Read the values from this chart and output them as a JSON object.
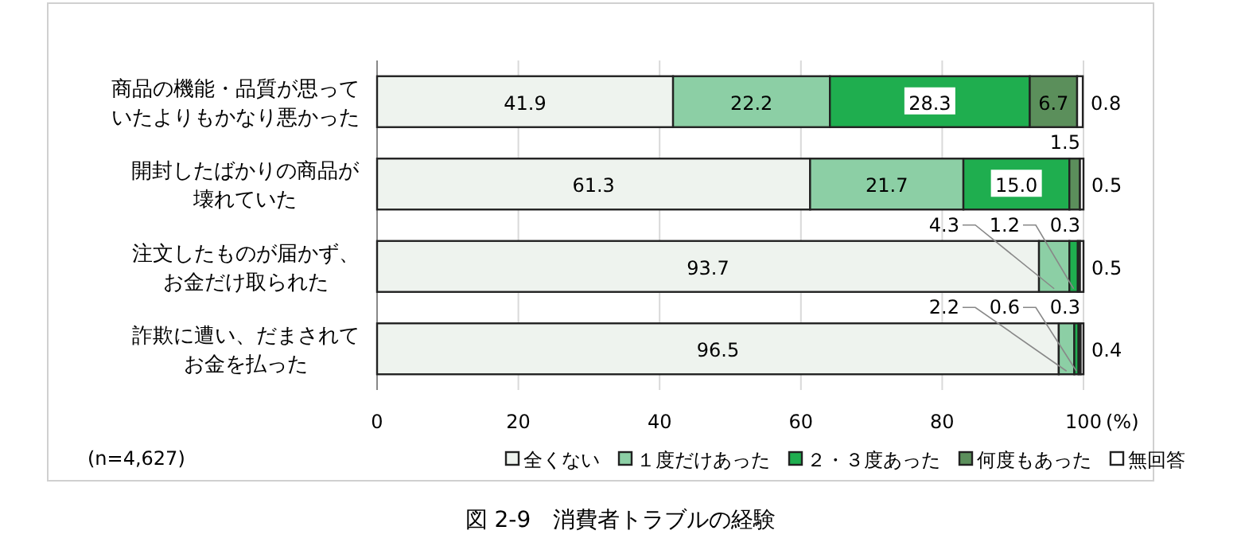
{
  "chart_data": {
    "type": "bar",
    "orientation": "horizontal",
    "stacked": true,
    "title": "図 2-9　消費者トラブルの経験",
    "xlabel": "(%)",
    "annotations": [
      "(n=4,627)"
    ],
    "categories": [
      "商品の機能・品質が思っていたよりもかなり悪かった",
      "開封したばかりの商品が壊れていた",
      "注文したものが届かず、お金だけ取られた",
      "詐欺に遭い、だまされてお金を払った"
    ],
    "series": [
      {
        "name": "全くない",
        "color": "#eef3ee",
        "values": [
          41.9,
          61.3,
          93.7,
          96.5
        ],
        "value_labels": [
          "41.9",
          "61.3",
          "93.7",
          "96.5"
        ]
      },
      {
        "name": "１度だけあった",
        "color": "#8ccfa5",
        "values": [
          22.2,
          21.7,
          4.3,
          2.2
        ],
        "value_labels": [
          "22.2",
          "21.7",
          "4.3",
          "2.2"
        ]
      },
      {
        "name": "２・３度あった",
        "color": "#1fae4f",
        "values": [
          28.3,
          15.0,
          1.2,
          0.6
        ],
        "value_labels": [
          "28.3",
          "15.0",
          "1.2",
          "0.6"
        ]
      },
      {
        "name": "何度もあった",
        "color": "#5b8f5b",
        "values": [
          6.7,
          1.5,
          0.3,
          0.3
        ],
        "value_labels": [
          "6.7",
          "1.5",
          "0.3",
          "0.3"
        ]
      },
      {
        "name": "無回答",
        "color": "#ffffff",
        "values": [
          0.8,
          0.5,
          0.5,
          0.4
        ],
        "value_labels": [
          "0.8",
          "0.5",
          "0.5",
          "0.4"
        ]
      }
    ],
    "xlim": [
      0,
      100
    ],
    "xticks": [
      0,
      20,
      40,
      60,
      80,
      {
        "value": 100,
        "label": "100"
      }
    ],
    "grid": "x",
    "legend": "bottom"
  }
}
